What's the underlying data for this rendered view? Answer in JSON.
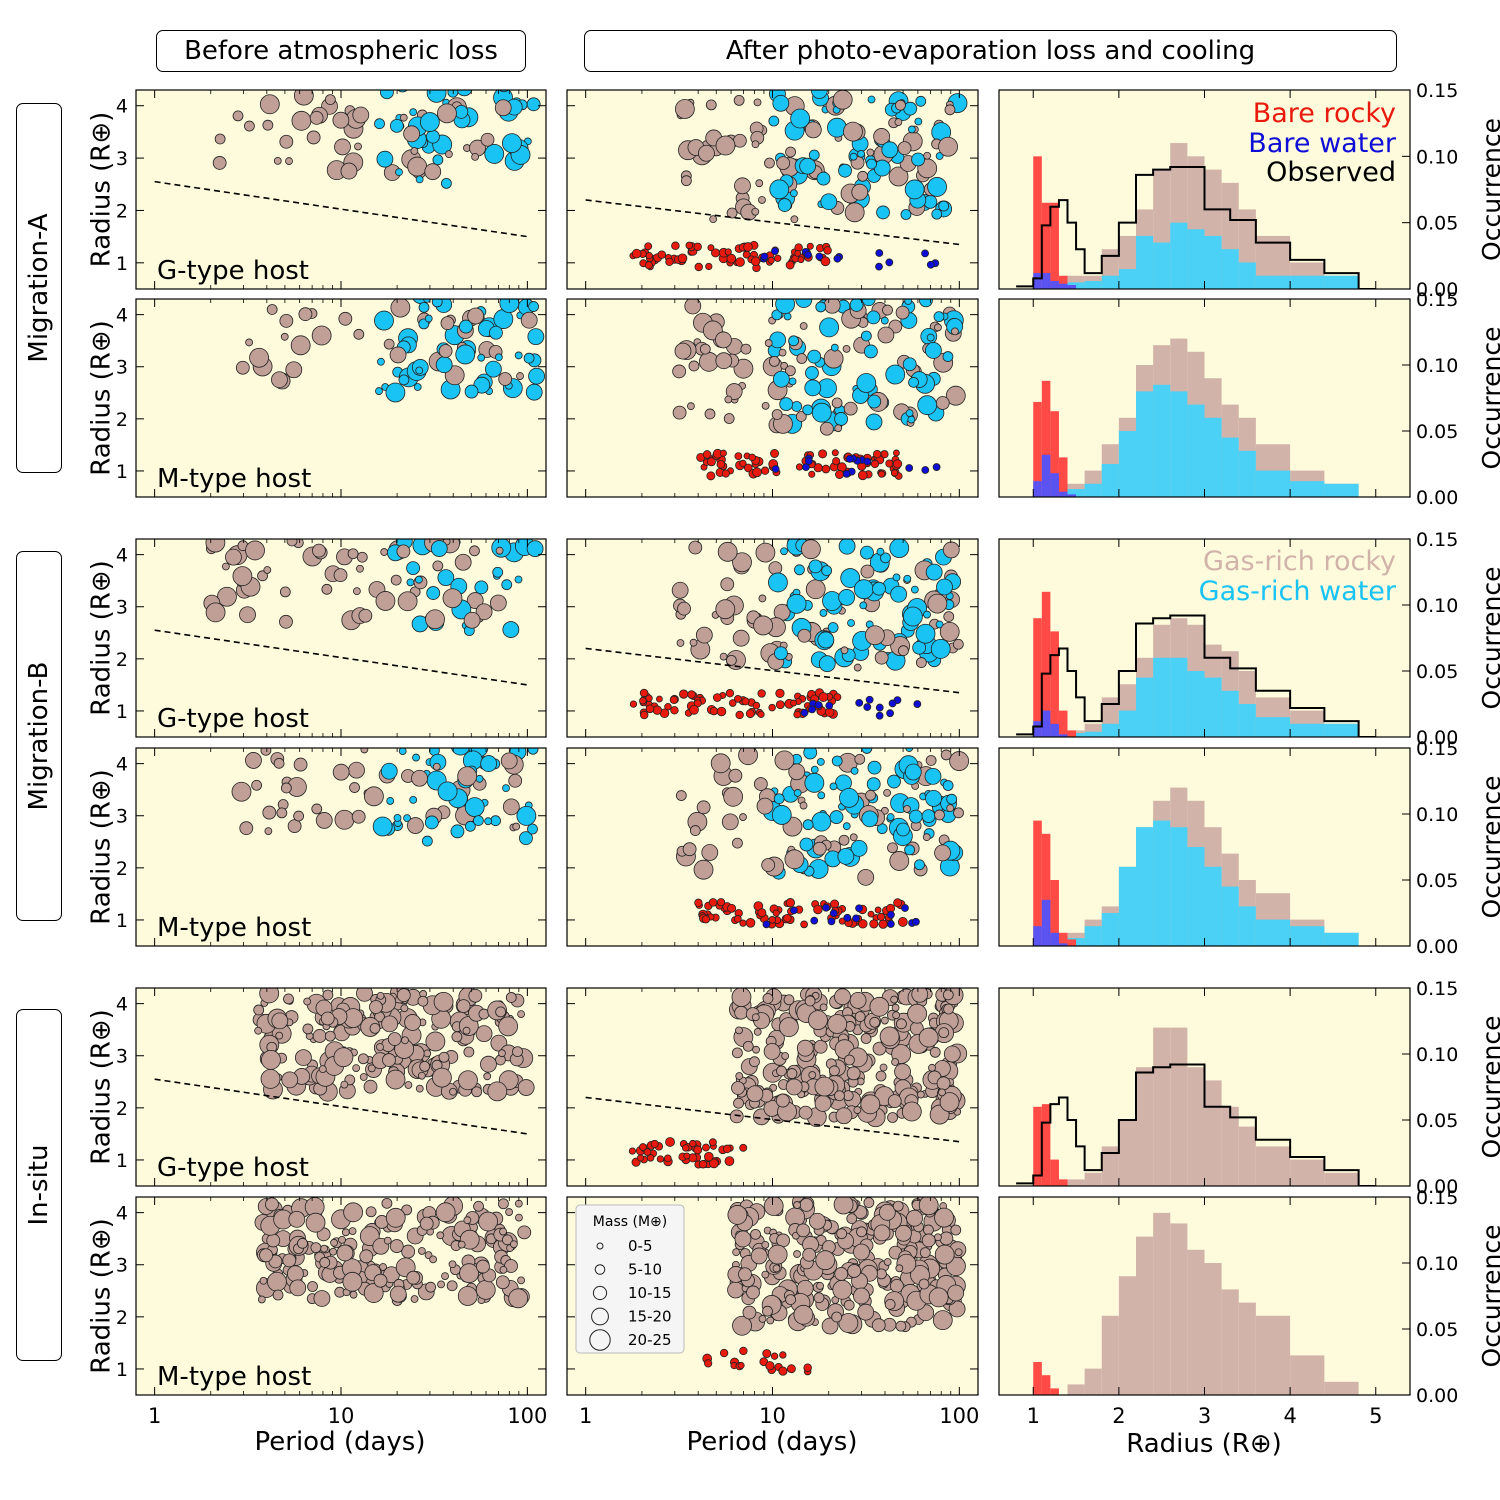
{
  "headers": {
    "before": "Before atmospheric loss",
    "after": "After photo-evaporation loss and cooling"
  },
  "rows": [
    {
      "scenario": "Migration-A",
      "hosts": [
        "G-type host",
        "M-type host"
      ]
    },
    {
      "scenario": "Migration-B",
      "hosts": [
        "G-type host",
        "M-type host"
      ]
    },
    {
      "scenario": "In-situ",
      "hosts": [
        "G-type host",
        "M-type host"
      ]
    }
  ],
  "colors": {
    "panel_bg": "#fdfbdc",
    "gas_rich_rocky": "#bf9f96",
    "gas_rich_water": "#19c3f4",
    "bare_rocky": "#e8190d",
    "bare_water": "#0e0ed6",
    "hist_bare_rocky": "#ff4a45",
    "hist_bare_water": "#5a53f2",
    "hist_gas_rocky": "#d2b3aa",
    "hist_gas_water": "#4ad1f5",
    "observed": "#000000"
  },
  "legend_text": {
    "bare_rocky": "Bare rocky",
    "bare_water": "Bare water",
    "observed": "Observed",
    "gas_rich_rocky": "Gas-rich rocky",
    "gas_rich_water": "Gas-rich water"
  },
  "mass_legend": {
    "title": "Mass (M⊕)",
    "bins": [
      "0-5",
      "5-10",
      "10-15",
      "15-20",
      "20-25"
    ]
  },
  "chart_data": {
    "type": "scatter",
    "x_axis": {
      "label": "Period (days)",
      "scale": "log",
      "ticks": [
        "1",
        "10",
        "100"
      ]
    },
    "y_axis": {
      "label": "Radius (R⊕)",
      "ticks": [
        "1",
        "2",
        "3",
        "4"
      ],
      "ylim": [
        0.5,
        4.3
      ]
    },
    "hist_x_axis": {
      "label": "Radius (R⊕)",
      "ticks": [
        "1",
        "2",
        "3",
        "4",
        "5"
      ],
      "xlim": [
        0.6,
        5.4
      ]
    },
    "hist_y_axis": {
      "label": "Occurrence",
      "ticks": [
        "0.00",
        "0.05",
        "0.10",
        "0.15"
      ],
      "ylim": [
        0,
        0.15
      ]
    },
    "valley_line": {
      "before": {
        "x": [
          1,
          100
        ],
        "y": [
          2.55,
          1.5
        ]
      },
      "after": {
        "x": [
          1,
          100
        ],
        "y": [
          2.2,
          1.35
        ]
      }
    },
    "observed_hist": {
      "x": [
        0.8,
        1.0,
        1.1,
        1.2,
        1.3,
        1.4,
        1.5,
        1.6,
        1.7,
        1.8,
        2.0,
        2.2,
        2.4,
        2.6,
        2.8,
        3.0,
        3.3,
        3.6,
        4.0,
        4.4,
        4.8
      ],
      "y": [
        0.002,
        0.008,
        0.048,
        0.062,
        0.067,
        0.05,
        0.03,
        0.012,
        0.012,
        0.025,
        0.05,
        0.086,
        0.09,
        0.092,
        0.092,
        0.06,
        0.052,
        0.035,
        0.022,
        0.012,
        0
      ]
    },
    "histograms": [
      {
        "label": "Migration-A G-type host",
        "bare_rocky": [
          0.0,
          0.1,
          0.065,
          0.065,
          0.01,
          0.0,
          0.0
        ],
        "bare_water": [
          0,
          0.012,
          0.012,
          0.006,
          0.004,
          0.003
        ],
        "gas_rich": [
          0,
          0,
          0,
          0.01,
          0.01,
          0.03,
          0.04,
          0.06,
          0.09,
          0.11,
          0.1,
          0.09,
          0.08,
          0.06,
          0.04,
          0.02,
          0.01
        ],
        "gas_rich_water": [
          0,
          0,
          0,
          0.005,
          0.006,
          0.01,
          0.015,
          0.04,
          0.035,
          0.05,
          0.045,
          0.04,
          0.03,
          0.02,
          0.01,
          0.01,
          0.01
        ]
      },
      {
        "label": "Migration-A M-type host",
        "bare_rocky": [
          0.0,
          0.072,
          0.088,
          0.065,
          0.03,
          0,
          0
        ],
        "bare_water": [
          0,
          0.012,
          0.032,
          0.018,
          0.004,
          0.002
        ],
        "gas_rich": [
          0,
          0,
          0,
          0.01,
          0.02,
          0.04,
          0.06,
          0.1,
          0.115,
          0.12,
          0.11,
          0.09,
          0.07,
          0.06,
          0.04,
          0.02,
          0.01
        ],
        "gas_rich_water": [
          0,
          0,
          0,
          0.006,
          0.01,
          0.025,
          0.05,
          0.08,
          0.085,
          0.08,
          0.07,
          0.06,
          0.045,
          0.035,
          0.02,
          0.012,
          0.01
        ]
      },
      {
        "label": "Migration-B G-type host",
        "bare_rocky": [
          0.0,
          0.09,
          0.11,
          0.08,
          0.02,
          0.005,
          0
        ],
        "bare_water": [
          0,
          0.012,
          0.02,
          0.01,
          0.002,
          0.0
        ],
        "gas_rich": [
          0,
          0,
          0,
          0.005,
          0.01,
          0.03,
          0.04,
          0.06,
          0.085,
          0.09,
          0.085,
          0.07,
          0.065,
          0.05,
          0.03,
          0.02,
          0.01
        ],
        "gas_rich_water": [
          0,
          0,
          0,
          0.003,
          0.004,
          0.01,
          0.02,
          0.045,
          0.06,
          0.06,
          0.05,
          0.045,
          0.035,
          0.025,
          0.015,
          0.01,
          0.01
        ]
      },
      {
        "label": "Migration-B M-type host",
        "bare_rocky": [
          0.0,
          0.095,
          0.085,
          0.05,
          0.01,
          0.005,
          0
        ],
        "bare_water": [
          0,
          0.015,
          0.035,
          0.01,
          0.002,
          0.0
        ],
        "gas_rich": [
          0,
          0,
          0,
          0.01,
          0.02,
          0.03,
          0.06,
          0.09,
          0.11,
          0.12,
          0.11,
          0.09,
          0.07,
          0.05,
          0.04,
          0.02,
          0.01
        ],
        "gas_rich_water": [
          0,
          0,
          0,
          0.006,
          0.015,
          0.025,
          0.06,
          0.09,
          0.095,
          0.09,
          0.075,
          0.06,
          0.045,
          0.03,
          0.02,
          0.015,
          0.01
        ]
      },
      {
        "label": "In-situ G-type host",
        "bare_rocky": [
          0.0,
          0.06,
          0.062,
          0.02,
          0.005,
          0.0,
          0
        ],
        "bare_water": [],
        "gas_rich": [
          0,
          0,
          0,
          0.005,
          0.01,
          0.03,
          0.05,
          0.09,
          0.12,
          0.12,
          0.09,
          0.08,
          0.06,
          0.045,
          0.03,
          0.02,
          0.01
        ],
        "gas_rich_water": []
      },
      {
        "label": "In-situ M-type host",
        "bare_rocky": [
          0.0,
          0.025,
          0.015,
          0.005,
          0.0,
          0,
          0
        ],
        "bare_water": [],
        "gas_rich": [
          0,
          0,
          0,
          0.008,
          0.02,
          0.06,
          0.09,
          0.12,
          0.138,
          0.13,
          0.11,
          0.1,
          0.08,
          0.07,
          0.06,
          0.03,
          0.01
        ],
        "gas_rich_water": []
      }
    ]
  }
}
